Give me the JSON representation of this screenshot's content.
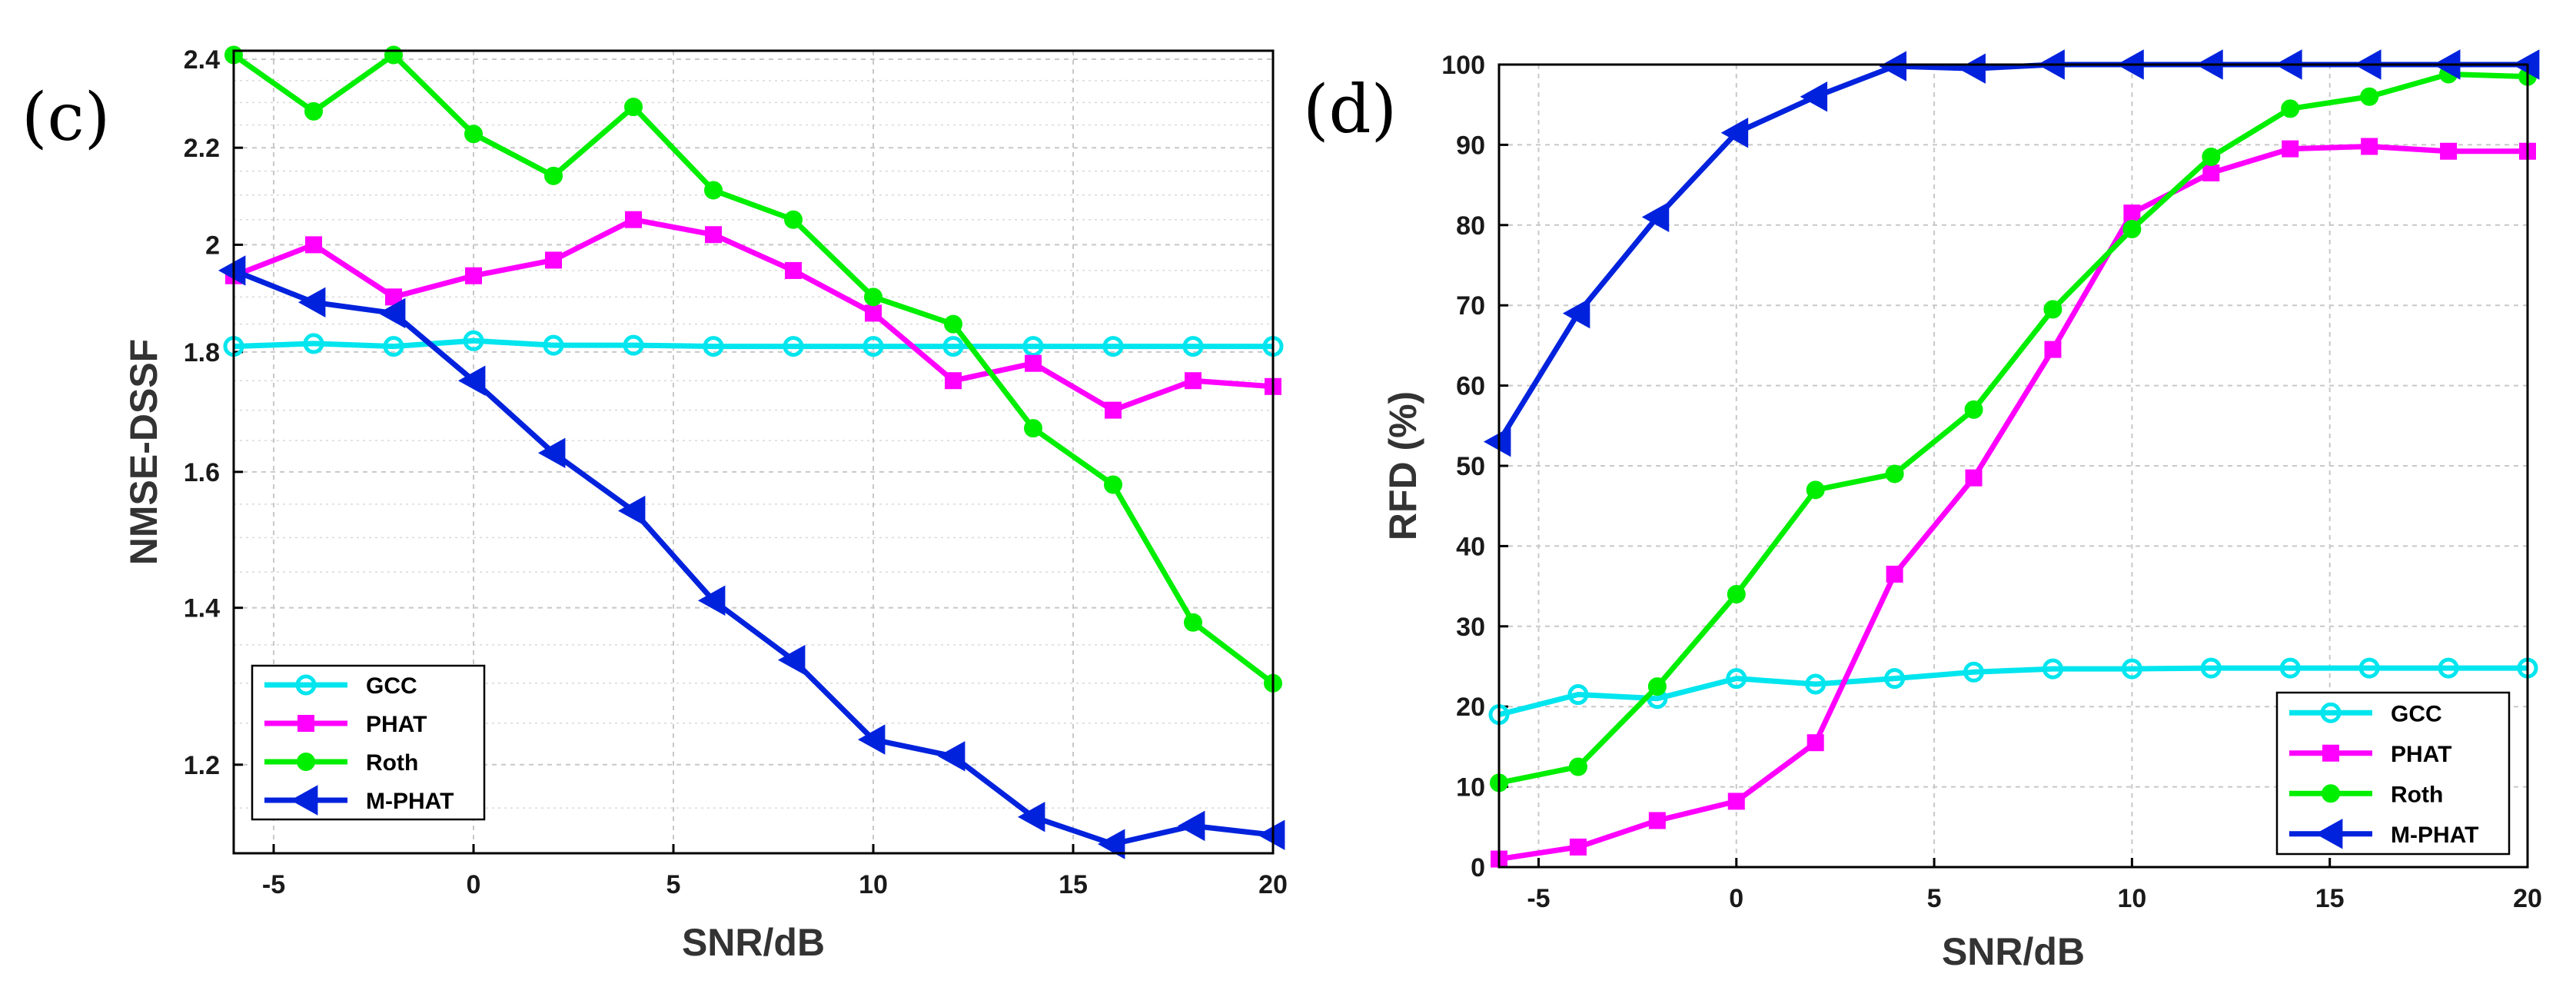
{
  "chart_data": [
    {
      "type": "line",
      "panel_label": "(c)",
      "xlabel": "SNR/dB",
      "ylabel": "NMSE-DSSF",
      "y_scale": "log",
      "xlim": [
        -6,
        20
      ],
      "ylim": [
        1.1,
        2.42
      ],
      "x_ticks": [
        -5,
        0,
        5,
        10,
        15,
        20
      ],
      "x_tick_labels": [
        "-5",
        "0",
        "5",
        "10",
        "15",
        "20"
      ],
      "y_ticks": [
        1.2,
        1.4,
        1.6,
        1.8,
        2.0,
        2.2,
        2.4
      ],
      "y_tick_labels": [
        "1.2",
        "1.4",
        "1.6",
        "1.8",
        "2",
        "2.2",
        "2.4"
      ],
      "grid": true,
      "legend_position": "bottom-left",
      "x": [
        -6,
        -4,
        -2,
        0,
        2,
        4,
        6,
        8,
        10,
        12,
        14,
        16,
        18,
        20
      ],
      "series": [
        {
          "name": "GCC",
          "color": "#00e5ee",
          "marker": "circle-open",
          "values": [
            1.81,
            1.815,
            1.81,
            1.82,
            1.812,
            1.812,
            1.81,
            1.81,
            1.81,
            1.81,
            1.81,
            1.81,
            1.81,
            1.81
          ]
        },
        {
          "name": "PHAT",
          "color": "#ff00ff",
          "marker": "square",
          "values": [
            1.94,
            2.0,
            1.9,
            1.94,
            1.97,
            2.05,
            2.02,
            1.95,
            1.87,
            1.75,
            1.78,
            1.7,
            1.75,
            1.74
          ]
        },
        {
          "name": "Roth",
          "color": "#00ee00",
          "marker": "circle",
          "values": [
            2.41,
            2.28,
            2.41,
            2.23,
            2.14,
            2.29,
            2.11,
            2.05,
            1.9,
            1.85,
            1.67,
            1.58,
            1.38,
            1.3
          ]
        },
        {
          "name": "M-PHAT",
          "color": "#0022dd",
          "marker": "triangle-left",
          "values": [
            1.95,
            1.89,
            1.87,
            1.75,
            1.63,
            1.54,
            1.41,
            1.33,
            1.23,
            1.21,
            1.14,
            1.11,
            1.13,
            1.12
          ]
        }
      ]
    },
    {
      "type": "line",
      "panel_label": "(d)",
      "xlabel": "SNR/dB",
      "ylabel": "RFD (%)",
      "y_scale": "linear",
      "xlim": [
        -6,
        20
      ],
      "ylim": [
        0,
        100
      ],
      "x_ticks": [
        -5,
        0,
        5,
        10,
        15,
        20
      ],
      "x_tick_labels": [
        "-5",
        "0",
        "5",
        "10",
        "15",
        "20"
      ],
      "y_ticks": [
        0,
        10,
        20,
        30,
        40,
        50,
        60,
        70,
        80,
        90,
        100
      ],
      "y_tick_labels": [
        "0",
        "10",
        "20",
        "30",
        "40",
        "50",
        "60",
        "70",
        "80",
        "90",
        "100"
      ],
      "grid": true,
      "legend_position": "bottom-right",
      "x": [
        -6,
        -4,
        -2,
        0,
        2,
        4,
        6,
        8,
        10,
        12,
        14,
        16,
        18,
        20
      ],
      "series": [
        {
          "name": "GCC",
          "color": "#00e5ee",
          "marker": "circle-open",
          "values": [
            19,
            21.5,
            21,
            23.5,
            22.8,
            23.5,
            24.3,
            24.7,
            24.7,
            24.8,
            24.8,
            24.8,
            24.8,
            24.8
          ]
        },
        {
          "name": "PHAT",
          "color": "#ff00ff",
          "marker": "square",
          "values": [
            1,
            2.5,
            5.8,
            8.2,
            15.5,
            36.5,
            48.5,
            64.5,
            81.5,
            86.5,
            89.5,
            89.8,
            89.2,
            89.2
          ]
        },
        {
          "name": "Roth",
          "color": "#00ee00",
          "marker": "circle",
          "values": [
            10.5,
            12.5,
            22.5,
            34,
            47,
            49,
            57,
            69.5,
            79.5,
            88.5,
            94.5,
            96,
            98.8,
            98.5
          ]
        },
        {
          "name": "M-PHAT",
          "color": "#0022dd",
          "marker": "triangle-left",
          "values": [
            53,
            69,
            81,
            91.5,
            96,
            99.8,
            99.5,
            100,
            100,
            100,
            100,
            100,
            100,
            100
          ]
        }
      ]
    }
  ]
}
